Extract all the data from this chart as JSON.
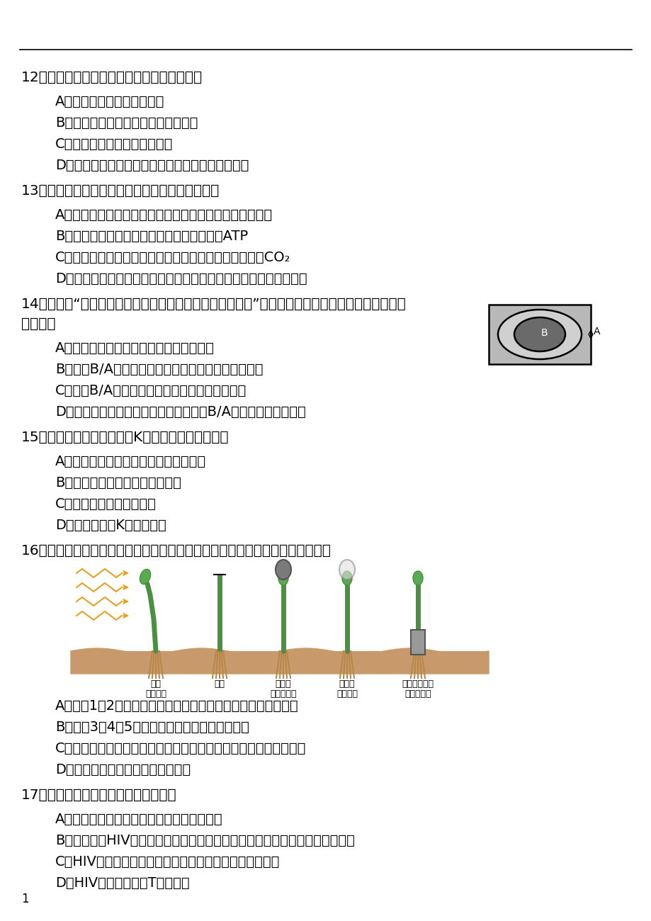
{
  "background_color": "#ffffff",
  "text_color": "#000000",
  "page_number": "1",
  "q12_text": "12．下列有关遗传病及预防的叙述，错误的是",
  "q12_opts": [
    "A．单基因遗传病多属罕见病",
    "B．青少年型糖尿病属于多基因遗传病",
    "C．遗传咋询是优生的措施之一",
    "D．凡是细胞里的遗传物质发生了改变的都称遗传病"
  ],
  "q13_text": "13．下列关于肌肉细胞厌氧呼吸的叙述，正确的是",
  "q13_opts": [
    "A．人体骨骼肌细胞产生的乳酸可运至肖细胞再生成葡萄糖",
    "B．肌肉厌氧呼吸释放的能量大多数用于合成ATP",
    "C．肌肉细胞在缺氧条件下进行厌氧呼吸的产物是乳酸和CO₂",
    "D．人体肌肉细胞厌氧呼吸产生的乳酸转变成葡萄糖不需要消耗能量"
  ],
  "q14_text1": "14．下图是“观察洋葱表皮细胞的质壁分离及质壁分离复原”活动中观察到的某个细胞，下列叙述中",
  "q14_text2": "正确的是",
  "q14_opts": [
    "A．图示状态的细胞水分进出保持动态平衡",
    "B．如果B/A値越大，说明所滴加的蔗糖溶液浓度越大",
    "C．图中B/A値越大，说明细胞质壁分离程度越高",
    "D．同一细胞用不同浓度蔗糖溶液处理，B/A値越小，则紫色越深"
  ],
  "q15_text": "15．下列关于环境容纳量（K値）的叙述，错误的是",
  "q15_opts": [
    "A．就是种群在该环境中的稳定平衡密度",
    "B．是由该环境的有效资源决定的",
    "C．与种群的个体数量无关",
    "D．同一种群的K値稳定不变"
  ],
  "q16_text": "16．达尔文父子研究植物的向光性时进行了如图所示的实验，下列叙述错误的是",
  "q16_opts": [
    "A．通过1、2两组实验，可得出尖端与植物的向光弯曲生长有关",
    "B．通过3、4、5三组实验，可得感光部位在尖端",
    "C．通过该实验能得出有某种化学物质从苗尖端传递到了下面的结论",
    "D．该植物的弯曲部位在苗尖端下面"
  ],
  "q17_text": "17．下列关于艾滋病的叙述，正确的是",
  "q17_opts": [
    "A．艾滋病的病原体属于病毒，不具有膜结构",
    "B．对已感染HIV的孕妇应用药物控制，实施剖腹产，并对其婴儿采用人工哺乳",
    "C．HIV能经昆虫传播，不会通过食物、握手或马桶座传播",
    "D．HIV只能感染辅助T淡巴细胞"
  ]
}
